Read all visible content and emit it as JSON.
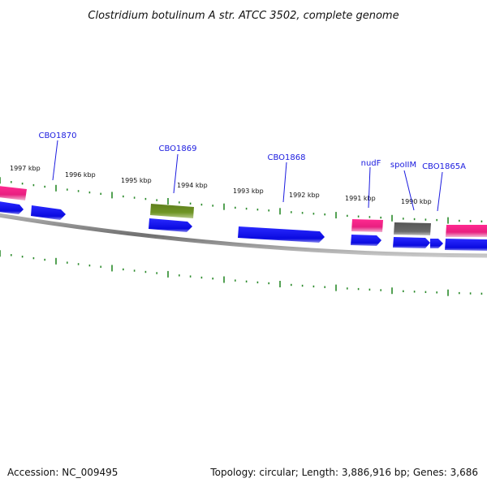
{
  "title": "Clostridium botulinum A str. ATCC 3502, complete genome",
  "footer": {
    "accession": "Accession: NC_009495",
    "topology": "Topology: circular; Length: 3,886,916 bp; Genes: 3,686"
  },
  "kbp_labels": [
    "1997 kbp",
    "1996 kbp",
    "1995 kbp",
    "1994 kbp",
    "1993 kbp",
    "1992 kbp",
    "1991 kbp",
    "1990 kbp"
  ],
  "gene_labels": [
    "CBO1870",
    "CBO1869",
    "CBO1868",
    "nudF",
    "spoIIM",
    "CBO1865A"
  ],
  "colors": {
    "cds": "#1010ee",
    "rrna_like": "#ee2288",
    "olive": "#6b8e23",
    "gray_gene": "#666666",
    "backbone": "#888888",
    "tick": "#2a8a2a",
    "label": "#1a1adf"
  }
}
